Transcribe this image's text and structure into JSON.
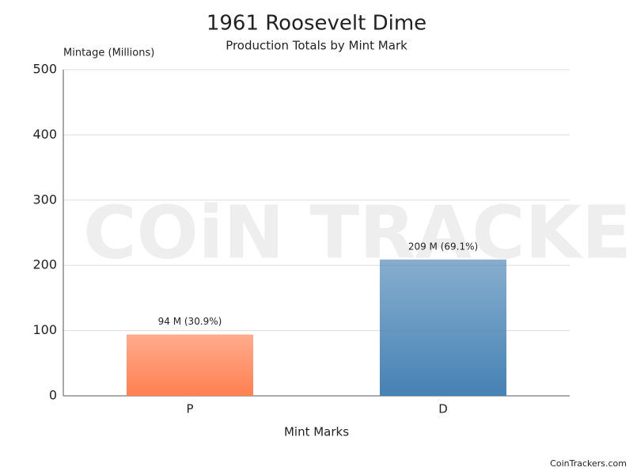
{
  "chart_data": {
    "type": "bar",
    "title": "1961 Roosevelt Dime",
    "subtitle": "Production Totals by Mint Mark",
    "y_label": "Mintage (Millions)",
    "x_label": "Mint Marks",
    "categories": [
      "P",
      "D"
    ],
    "values": [
      94,
      209
    ],
    "value_labels": [
      "94 M (30.9%)",
      "209 M (69.1%)"
    ],
    "colors": [
      "#ff7f50",
      "#4682b4"
    ],
    "ylim": [
      0,
      500
    ],
    "yticks": [
      0,
      100,
      200,
      300,
      400,
      500
    ],
    "grid": true,
    "watermark": "COiN TRACKERS",
    "source": "CoinTrackers.com"
  }
}
